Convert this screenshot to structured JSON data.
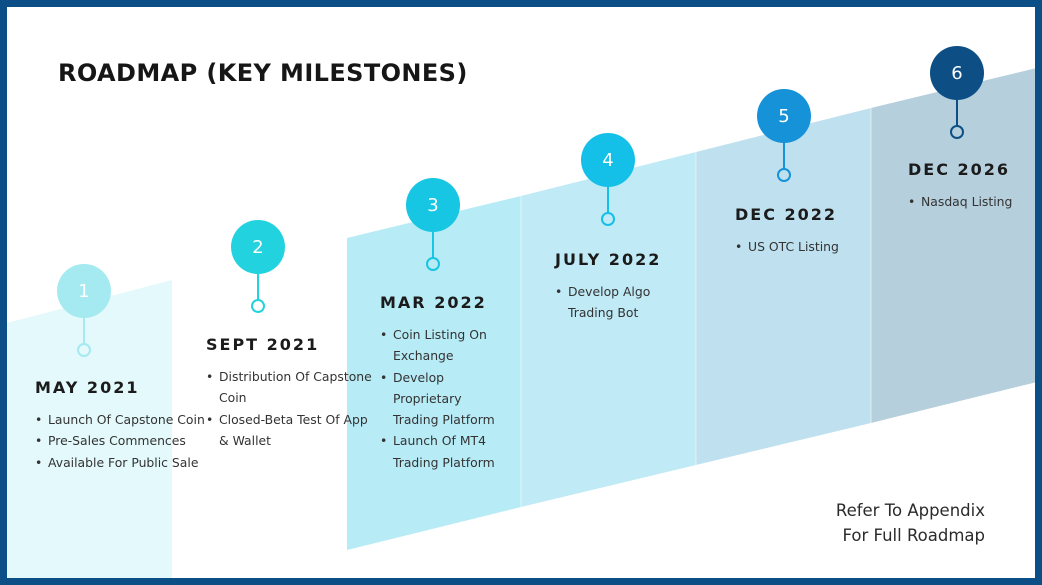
{
  "title": "ROADMAP (KEY MILESTONES)",
  "milestones": [
    {
      "number": "1",
      "date": "MAY 2021",
      "items": [
        "Launch Of Capstone Coin",
        "Pre-Sales Commences",
        "Available For Public Sale"
      ],
      "color": "#a5eaf1",
      "band_color": "#e3f9fb"
    },
    {
      "number": "2",
      "date": "SEPT 2021",
      "items": [
        "Distribution Of Capstone Coin",
        "Closed-Beta Test Of App & Wallet"
      ],
      "color": "#22d3df",
      "band_color": "#ffffff"
    },
    {
      "number": "3",
      "date": "MAR 2022",
      "items": [
        "Coin Listing On Exchange",
        "Develop Proprietary Trading Platform",
        "Launch Of MT4 Trading Platform"
      ],
      "color": "#17c6e3",
      "band_color": "#b7ebf6"
    },
    {
      "number": "4",
      "date": "JULY 2022",
      "items": [
        "Develop Algo Trading Bot"
      ],
      "color": "#15c0e8",
      "band_color": "#bfeaf6"
    },
    {
      "number": "5",
      "date": "DEC 2022",
      "items": [
        "US OTC Listing"
      ],
      "color": "#1592d8",
      "band_color": "#bfe0ee"
    },
    {
      "number": "6",
      "date": "DEC 2026",
      "items": [
        "Nasdaq Listing"
      ],
      "color": "#0d4f85",
      "band_color": "#b5cfdd"
    }
  ],
  "appendix": [
    "Refer To Appendix",
    "For Full Roadmap"
  ]
}
